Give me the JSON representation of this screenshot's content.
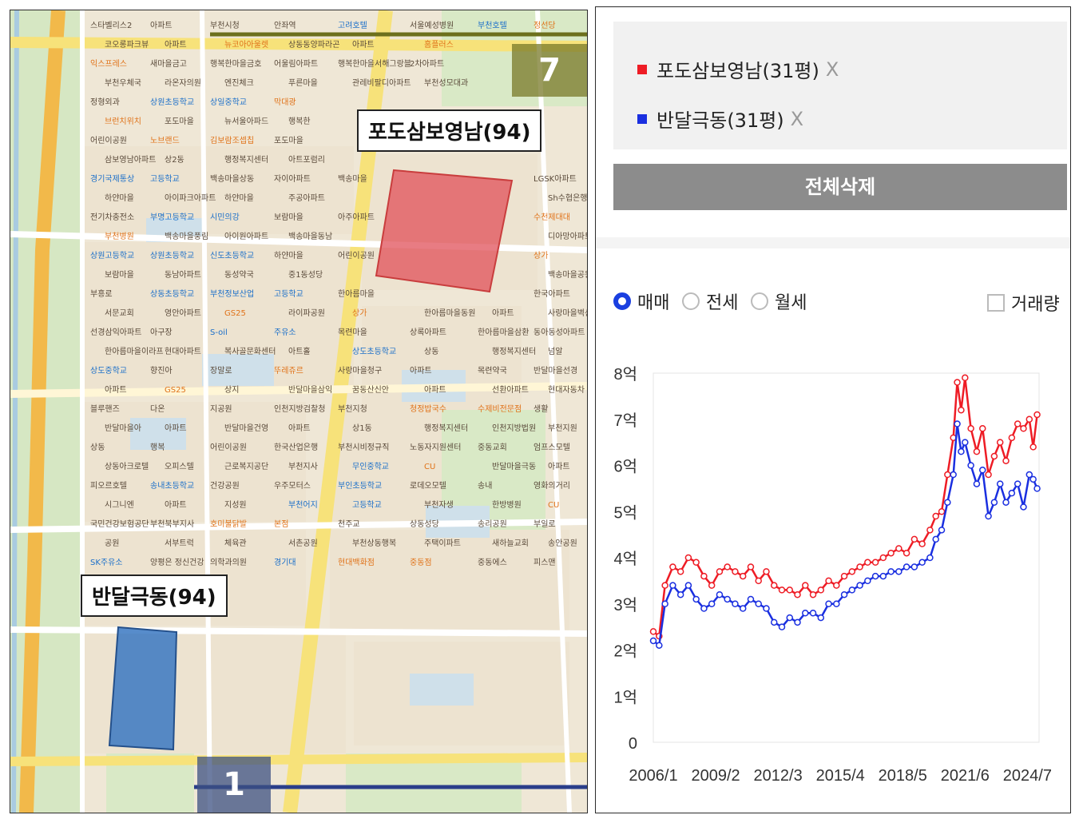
{
  "map": {
    "callout_a": "포도삼보영남(94)",
    "callout_b": "반달극동(94)",
    "station_top": "7",
    "station_bottom": "1",
    "zones": {
      "podo_color": "#e0505a",
      "bandal_color": "#3a78c2"
    },
    "pois": [
      {
        "t": "스타벨리스2",
        "c": ""
      },
      {
        "t": "아파트",
        "c": ""
      },
      {
        "t": "부천시청",
        "c": ""
      },
      {
        "t": "안좌역",
        "c": ""
      },
      {
        "t": "고려호텔",
        "c": "blue"
      },
      {
        "t": "서울예성병원",
        "c": ""
      },
      {
        "t": "부천호텔",
        "c": "blue"
      },
      {
        "t": "정선당",
        "c": "orange"
      },
      {
        "t": "코오롱파크뷰",
        "c": ""
      },
      {
        "t": "아파트",
        "c": ""
      },
      {
        "t": "뉴코아아울렛",
        "c": "orange"
      },
      {
        "t": "상동동양파라곤",
        "c": ""
      },
      {
        "t": "아파트",
        "c": ""
      },
      {
        "t": "홈플러스",
        "c": "orange"
      },
      {
        "t": "익스프레스",
        "c": "orange"
      },
      {
        "t": "새마을금고",
        "c": ""
      },
      {
        "t": "행복한마을금호",
        "c": ""
      },
      {
        "t": "어울림아파트",
        "c": ""
      },
      {
        "t": "행복한마을서해그랑블",
        "c": ""
      },
      {
        "t": "2차아파트",
        "c": ""
      },
      {
        "t": "부천우체국",
        "c": ""
      },
      {
        "t": "라온자의원",
        "c": ""
      },
      {
        "t": "엔진체크",
        "c": ""
      },
      {
        "t": "푸른마을",
        "c": ""
      },
      {
        "t": "관레비팔디아파트",
        "c": ""
      },
      {
        "t": "부천성모대과",
        "c": ""
      },
      {
        "t": "정형외과",
        "c": ""
      },
      {
        "t": "상원초등학교",
        "c": "blue"
      },
      {
        "t": "상일중학교",
        "c": "blue"
      },
      {
        "t": "막대광",
        "c": "orange"
      },
      {
        "t": "브런치위치",
        "c": "orange"
      },
      {
        "t": "포도마을",
        "c": ""
      },
      {
        "t": "뉴서울아파드",
        "c": ""
      },
      {
        "t": "행복한",
        "c": ""
      },
      {
        "t": "어린이공원",
        "c": ""
      },
      {
        "t": "노브랜드",
        "c": "orange"
      },
      {
        "t": "김보람조셉칩",
        "c": "orange"
      },
      {
        "t": "포도마을",
        "c": ""
      },
      {
        "t": "삼보영남아파트",
        "c": ""
      },
      {
        "t": "상2동",
        "c": ""
      },
      {
        "t": "행정복지센터",
        "c": ""
      },
      {
        "t": "아트포럼리",
        "c": ""
      },
      {
        "t": "경기국제통상",
        "c": "blue"
      },
      {
        "t": "고등학교",
        "c": "blue"
      },
      {
        "t": "백송마을상동",
        "c": ""
      },
      {
        "t": "자이아파트",
        "c": ""
      },
      {
        "t": "백송마을",
        "c": ""
      },
      {
        "t": "LGSK아파트",
        "c": ""
      },
      {
        "t": "하얀마을",
        "c": ""
      },
      {
        "t": "아이파크아파트",
        "c": ""
      },
      {
        "t": "하얀마을",
        "c": ""
      },
      {
        "t": "주공아파트",
        "c": ""
      },
      {
        "t": "Sh수협은행",
        "c": ""
      },
      {
        "t": "전기차충전소",
        "c": ""
      },
      {
        "t": "부명고등학교",
        "c": "blue"
      },
      {
        "t": "시민의강",
        "c": "blue"
      },
      {
        "t": "보람마을",
        "c": ""
      },
      {
        "t": "아주아파트",
        "c": ""
      },
      {
        "t": "수천제대대",
        "c": "orange"
      },
      {
        "t": "부천병원",
        "c": "orange"
      },
      {
        "t": "백송마을풍림",
        "c": ""
      },
      {
        "t": "아이원아파트",
        "c": ""
      },
      {
        "t": "백송마을동남",
        "c": ""
      },
      {
        "t": "디아망아파트",
        "c": ""
      },
      {
        "t": "상원고등학교",
        "c": "blue"
      },
      {
        "t": "상원초등학교",
        "c": "blue"
      },
      {
        "t": "신도초등학교",
        "c": "blue"
      },
      {
        "t": "하얀마을",
        "c": ""
      },
      {
        "t": "어린이공원",
        "c": ""
      },
      {
        "t": "상가",
        "c": "orange"
      },
      {
        "t": "보람마을",
        "c": ""
      },
      {
        "t": "동남아파트",
        "c": ""
      },
      {
        "t": "동성약국",
        "c": ""
      },
      {
        "t": "중1동성당",
        "c": ""
      },
      {
        "t": "백송마을공원",
        "c": ""
      },
      {
        "t": "부흥로",
        "c": ""
      },
      {
        "t": "상동초등학교",
        "c": "blue"
      },
      {
        "t": "부천정보산업",
        "c": "blue"
      },
      {
        "t": "고등학교",
        "c": "blue"
      },
      {
        "t": "한아름마을",
        "c": ""
      },
      {
        "t": "한국아파트",
        "c": ""
      },
      {
        "t": "서문교회",
        "c": ""
      },
      {
        "t": "영안아파트",
        "c": ""
      },
      {
        "t": "GS25",
        "c": "orange"
      },
      {
        "t": "라이파공원",
        "c": ""
      },
      {
        "t": "상가",
        "c": "orange"
      },
      {
        "t": "한아름마을동원",
        "c": ""
      },
      {
        "t": "아파트",
        "c": ""
      },
      {
        "t": "사랑마을벽산",
        "c": ""
      },
      {
        "t": "선경삼익아파트",
        "c": ""
      },
      {
        "t": "아구장",
        "c": ""
      },
      {
        "t": "S-oil",
        "c": "blue"
      },
      {
        "t": "주유소",
        "c": "blue"
      },
      {
        "t": "목련마을",
        "c": ""
      },
      {
        "t": "상록아파트",
        "c": ""
      },
      {
        "t": "한아름마을삼환",
        "c": ""
      },
      {
        "t": "동아동성아파트",
        "c": ""
      },
      {
        "t": "한아름마을이라프",
        "c": ""
      },
      {
        "t": "현대아파트",
        "c": ""
      },
      {
        "t": "복사골문화센터",
        "c": ""
      },
      {
        "t": "아트홀",
        "c": ""
      },
      {
        "t": "상도초등학교",
        "c": "blue"
      },
      {
        "t": "상동",
        "c": ""
      },
      {
        "t": "행정복지센터",
        "c": ""
      },
      {
        "t": "넘알",
        "c": ""
      },
      {
        "t": "상도중학교",
        "c": "blue"
      },
      {
        "t": "향진아",
        "c": ""
      },
      {
        "t": "장말로",
        "c": ""
      },
      {
        "t": "뚜레쥬르",
        "c": "orange"
      },
      {
        "t": "사랑마을청구",
        "c": ""
      },
      {
        "t": "아파트",
        "c": ""
      },
      {
        "t": "목련약국",
        "c": ""
      },
      {
        "t": "반달마을선경",
        "c": ""
      },
      {
        "t": "아파트",
        "c": ""
      },
      {
        "t": "GS25",
        "c": "orange"
      },
      {
        "t": "상지",
        "c": ""
      },
      {
        "t": "반달마을삼익",
        "c": ""
      },
      {
        "t": "꿈동산신안",
        "c": ""
      },
      {
        "t": "아파트",
        "c": ""
      },
      {
        "t": "선환아파트",
        "c": ""
      },
      {
        "t": "현대자동차",
        "c": ""
      },
      {
        "t": "블루핸즈",
        "c": ""
      },
      {
        "t": "다온",
        "c": ""
      },
      {
        "t": "지공원",
        "c": ""
      },
      {
        "t": "인천지방검찰청",
        "c": ""
      },
      {
        "t": "부천지청",
        "c": ""
      },
      {
        "t": "청정밥국수",
        "c": "orange"
      },
      {
        "t": "수제비전문점",
        "c": "orange"
      },
      {
        "t": "생활",
        "c": ""
      },
      {
        "t": "반달마을아",
        "c": ""
      },
      {
        "t": "아파트",
        "c": ""
      },
      {
        "t": "반달마을건영",
        "c": ""
      },
      {
        "t": "아파트",
        "c": ""
      },
      {
        "t": "상1동",
        "c": ""
      },
      {
        "t": "행정복지센터",
        "c": ""
      },
      {
        "t": "인천지방법원",
        "c": ""
      },
      {
        "t": "부천지원",
        "c": ""
      },
      {
        "t": "상동",
        "c": ""
      },
      {
        "t": "행복",
        "c": ""
      },
      {
        "t": "어린이공원",
        "c": ""
      },
      {
        "t": "한국산업은행",
        "c": ""
      },
      {
        "t": "부천시비정규직",
        "c": ""
      },
      {
        "t": "노동자지원센터",
        "c": ""
      },
      {
        "t": "중동교회",
        "c": ""
      },
      {
        "t": "엄프스모텔",
        "c": ""
      },
      {
        "t": "상동아크로텔",
        "c": ""
      },
      {
        "t": "오피스텔",
        "c": ""
      },
      {
        "t": "근로복지공단",
        "c": ""
      },
      {
        "t": "부천지사",
        "c": ""
      },
      {
        "t": "무인중학교",
        "c": "blue"
      },
      {
        "t": "CU",
        "c": "orange"
      },
      {
        "t": "반달마을극동",
        "c": ""
      },
      {
        "t": "아파트",
        "c": ""
      },
      {
        "t": "피오르호텔",
        "c": ""
      },
      {
        "t": "송내초등학교",
        "c": "blue"
      },
      {
        "t": "건강공원",
        "c": ""
      },
      {
        "t": "우주모터스",
        "c": ""
      },
      {
        "t": "부인초등학교",
        "c": "blue"
      },
      {
        "t": "로데오모텔",
        "c": ""
      },
      {
        "t": "송내",
        "c": ""
      },
      {
        "t": "영화의거리",
        "c": ""
      },
      {
        "t": "시그니엔",
        "c": ""
      },
      {
        "t": "아파트",
        "c": ""
      },
      {
        "t": "지성원",
        "c": ""
      },
      {
        "t": "부천어지",
        "c": "blue"
      },
      {
        "t": "고등학교",
        "c": "blue"
      },
      {
        "t": "부천자생",
        "c": ""
      },
      {
        "t": "한방병원",
        "c": ""
      },
      {
        "t": "CU",
        "c": "orange"
      },
      {
        "t": "국민건강보험공단",
        "c": ""
      },
      {
        "t": "부천북부지사",
        "c": ""
      },
      {
        "t": "호미불닭발",
        "c": "orange"
      },
      {
        "t": "본점",
        "c": "orange"
      },
      {
        "t": "천주교",
        "c": ""
      },
      {
        "t": "상동성당",
        "c": ""
      },
      {
        "t": "송리공원",
        "c": ""
      },
      {
        "t": "부일로",
        "c": ""
      },
      {
        "t": "공원",
        "c": ""
      },
      {
        "t": "서부트럭",
        "c": ""
      },
      {
        "t": "체육관",
        "c": ""
      },
      {
        "t": "서촌공원",
        "c": ""
      },
      {
        "t": "부천상동행복",
        "c": ""
      },
      {
        "t": "주택이파트",
        "c": ""
      },
      {
        "t": "새하늘교회",
        "c": ""
      },
      {
        "t": "송안공원",
        "c": ""
      },
      {
        "t": "SK주유소",
        "c": "blue"
      },
      {
        "t": "양평은 정신건강",
        "c": ""
      },
      {
        "t": "의학과의원",
        "c": ""
      },
      {
        "t": "경기대",
        "c": "blue"
      },
      {
        "t": "현대백화점",
        "c": "orange"
      },
      {
        "t": "중동점",
        "c": "orange"
      },
      {
        "t": "중동에스",
        "c": ""
      },
      {
        "t": "피스맨",
        "c": ""
      }
    ]
  },
  "panel": {
    "legend": [
      {
        "label": "포도삼보영남(31평)",
        "color": "#ee1c25",
        "remove": "X"
      },
      {
        "label": "반달극동(31평)",
        "color": "#1a2fe0",
        "remove": "X"
      }
    ],
    "delete_all": "전체삭제",
    "radios": [
      {
        "label": "매매",
        "checked": true
      },
      {
        "label": "전세",
        "checked": false
      },
      {
        "label": "월세",
        "checked": false
      }
    ],
    "volume_checkbox": "거래량"
  },
  "chart_data": {
    "type": "line",
    "title": "",
    "xlabel": "",
    "ylabel": "",
    "x_ticks": [
      "2006/1",
      "2009/2",
      "2012/3",
      "2015/4",
      "2018/5",
      "2021/6",
      "2024/7"
    ],
    "y_ticks": [
      "0",
      "1억",
      "2억",
      "3억",
      "4억",
      "5억",
      "6억",
      "7억",
      "8억"
    ],
    "ylim": [
      0,
      8
    ],
    "y_unit": "억",
    "x_range": [
      2006.0,
      2025.8
    ],
    "grid": false,
    "series": [
      {
        "name": "포도삼보영남(31평)",
        "color": "#ee1c25",
        "x": [
          2006.0,
          2006.3,
          2006.6,
          2007.0,
          2007.4,
          2007.8,
          2008.2,
          2008.6,
          2009.0,
          2009.4,
          2009.8,
          2010.2,
          2010.6,
          2011.0,
          2011.4,
          2011.8,
          2012.2,
          2012.6,
          2013.0,
          2013.4,
          2013.8,
          2014.2,
          2014.6,
          2015.0,
          2015.4,
          2015.8,
          2016.2,
          2016.6,
          2017.0,
          2017.4,
          2017.8,
          2018.2,
          2018.6,
          2019.0,
          2019.4,
          2019.8,
          2020.2,
          2020.5,
          2020.8,
          2021.1,
          2021.4,
          2021.6,
          2021.8,
          2022.0,
          2022.3,
          2022.6,
          2022.9,
          2023.2,
          2023.5,
          2023.8,
          2024.1,
          2024.4,
          2024.7,
          2025.0,
          2025.3,
          2025.5,
          2025.7
        ],
        "values": [
          2.4,
          2.3,
          3.4,
          3.8,
          3.7,
          4.0,
          3.9,
          3.6,
          3.4,
          3.7,
          3.8,
          3.7,
          3.6,
          3.8,
          3.5,
          3.7,
          3.4,
          3.3,
          3.3,
          3.2,
          3.4,
          3.2,
          3.3,
          3.5,
          3.4,
          3.6,
          3.7,
          3.8,
          3.9,
          3.9,
          4.0,
          4.1,
          4.2,
          4.1,
          4.4,
          4.3,
          4.6,
          4.9,
          5.0,
          5.8,
          6.6,
          7.8,
          7.2,
          7.9,
          6.8,
          6.3,
          6.8,
          5.8,
          6.2,
          6.5,
          6.1,
          6.6,
          6.9,
          6.8,
          7.0,
          6.4,
          7.1
        ]
      },
      {
        "name": "반달극동(31평)",
        "color": "#1a2fe0",
        "x": [
          2006.0,
          2006.3,
          2006.6,
          2007.0,
          2007.4,
          2007.8,
          2008.2,
          2008.6,
          2009.0,
          2009.4,
          2009.8,
          2010.2,
          2010.6,
          2011.0,
          2011.4,
          2011.8,
          2012.2,
          2012.6,
          2013.0,
          2013.4,
          2013.8,
          2014.2,
          2014.6,
          2015.0,
          2015.4,
          2015.8,
          2016.2,
          2016.6,
          2017.0,
          2017.4,
          2017.8,
          2018.2,
          2018.6,
          2019.0,
          2019.4,
          2019.8,
          2020.2,
          2020.5,
          2020.8,
          2021.1,
          2021.4,
          2021.6,
          2021.8,
          2022.0,
          2022.3,
          2022.6,
          2022.9,
          2023.2,
          2023.5,
          2023.8,
          2024.1,
          2024.4,
          2024.7,
          2025.0,
          2025.3,
          2025.5,
          2025.7
        ],
        "values": [
          2.2,
          2.1,
          3.0,
          3.4,
          3.2,
          3.4,
          3.1,
          2.9,
          3.0,
          3.2,
          3.1,
          3.0,
          2.9,
          3.1,
          3.0,
          2.9,
          2.6,
          2.5,
          2.7,
          2.6,
          2.8,
          2.8,
          2.7,
          3.0,
          3.0,
          3.2,
          3.3,
          3.4,
          3.5,
          3.6,
          3.6,
          3.7,
          3.7,
          3.8,
          3.8,
          3.9,
          4.0,
          4.4,
          4.6,
          5.2,
          5.8,
          6.9,
          6.3,
          6.5,
          6.0,
          5.6,
          5.9,
          4.9,
          5.2,
          5.6,
          5.2,
          5.4,
          5.6,
          5.1,
          5.8,
          5.7,
          5.5
        ]
      }
    ]
  }
}
